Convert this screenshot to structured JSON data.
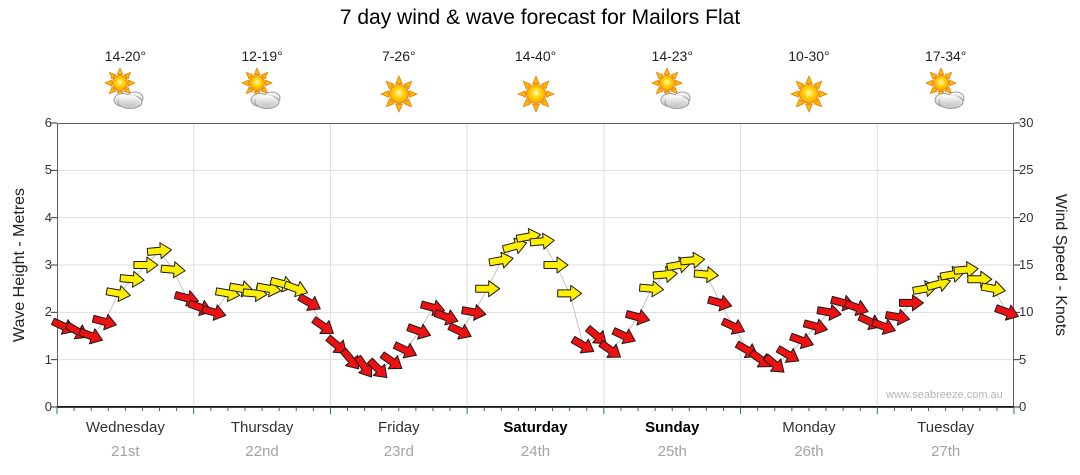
{
  "chart_data": {
    "type": "wind-arrows",
    "title": "7 day wind & wave forecast for Mailors Flat",
    "ylabel_left": "Wave Height - Metres",
    "ylabel_right": "Wind Speed - Knots",
    "ylim_left": [
      0,
      6
    ],
    "ylim_right": [
      0,
      30
    ],
    "left_ticks": [
      0,
      1,
      2,
      3,
      4,
      5,
      6
    ],
    "right_ticks": [
      0,
      5,
      10,
      15,
      20,
      25,
      30
    ],
    "grid": true,
    "legend_position": "none",
    "watermark": "www.seabreeze.com.au",
    "arrow_color_rule": {
      "threshold_knots": 12,
      "below_color": "#ee1111",
      "at_or_above_color": "#ffee00",
      "outline_color": "#1a1a1a"
    },
    "points_per_day": 10,
    "days": [
      {
        "name": "Wednesday",
        "date": "21st",
        "temp": "14-20°",
        "icon": "partly-cloudy",
        "weekend": false,
        "knots": [
          8.5,
          8,
          7.5,
          9,
          12,
          13.5,
          15,
          16.5,
          14.5,
          11.5
        ],
        "dir": [
          25,
          30,
          20,
          15,
          10,
          5,
          0,
          -5,
          5,
          15
        ]
      },
      {
        "name": "Thursday",
        "date": "22nd",
        "temp": "12-19°",
        "icon": "partly-cloudy",
        "weekend": false,
        "knots": [
          10.5,
          10,
          12,
          12.5,
          12,
          12.5,
          13,
          12.5,
          11,
          8.5
        ],
        "dir": [
          20,
          15,
          10,
          10,
          5,
          10,
          15,
          20,
          30,
          35
        ]
      },
      {
        "name": "Friday",
        "date": "23rd",
        "temp": "7-26°",
        "icon": "sunny",
        "weekend": false,
        "knots": [
          6.5,
          5,
          4.2,
          4,
          4.8,
          6,
          8,
          10.5,
          9.5,
          8
        ],
        "dir": [
          40,
          50,
          55,
          45,
          35,
          25,
          20,
          15,
          20,
          25
        ]
      },
      {
        "name": "Saturday",
        "date": "24th",
        "temp": "14-40°",
        "icon": "sunny",
        "weekend": true,
        "knots": [
          10,
          12.5,
          15.5,
          17,
          18,
          17.5,
          15,
          12,
          6.5,
          7.5
        ],
        "dir": [
          10,
          0,
          -10,
          -15,
          -10,
          -5,
          0,
          0,
          30,
          40
        ]
      },
      {
        "name": "Sunday",
        "date": "25th",
        "temp": "14-23°",
        "icon": "partly-cloudy",
        "weekend": true,
        "knots": [
          6,
          7.5,
          9.5,
          12.5,
          14,
          15,
          15.5,
          14,
          11,
          8.5
        ],
        "dir": [
          35,
          25,
          15,
          5,
          -5,
          -10,
          -5,
          5,
          15,
          25
        ]
      },
      {
        "name": "Monday",
        "date": "26th",
        "temp": "10-30°",
        "icon": "sunny",
        "weekend": false,
        "knots": [
          6,
          5,
          4.5,
          5.5,
          7,
          8.5,
          10,
          11,
          10.5,
          9
        ],
        "dir": [
          30,
          35,
          40,
          30,
          20,
          15,
          10,
          15,
          20,
          25
        ]
      },
      {
        "name": "Tuesday",
        "date": "27th",
        "temp": "17-34°",
        "icon": "partly-cloudy",
        "weekend": false,
        "knots": [
          8.5,
          9.5,
          11,
          12.5,
          13,
          14,
          14.5,
          13.5,
          12.5,
          10
        ],
        "dir": [
          20,
          10,
          0,
          -10,
          -15,
          -10,
          -5,
          0,
          10,
          20
        ]
      }
    ]
  }
}
